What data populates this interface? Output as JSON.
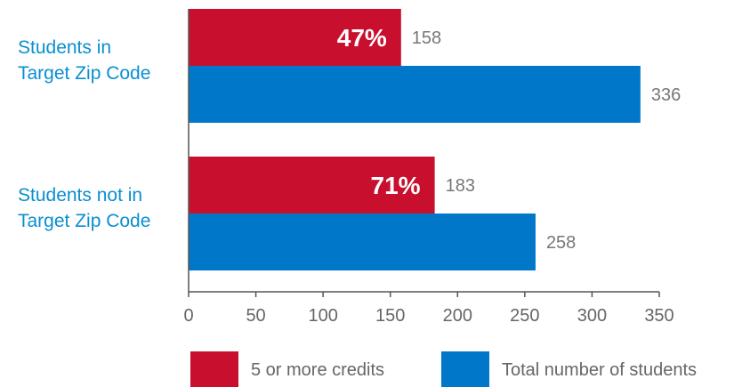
{
  "colors": {
    "credits": "#c8102e",
    "total": "#0077c8",
    "category_text": "#0a8fd0",
    "axis": "#555555"
  },
  "chart_data": {
    "type": "bar",
    "orientation": "horizontal",
    "categories": [
      "Students in Target Zip Code",
      "Students not in Target Zip Code"
    ],
    "category_lines": [
      [
        "Students in",
        "Target Zip Code"
      ],
      [
        "Students not in",
        "Target Zip Code"
      ]
    ],
    "series": [
      {
        "name": "5 or more credits",
        "values": [
          158,
          183
        ],
        "percent_labels": [
          "47%",
          "71%"
        ]
      },
      {
        "name": "Total number of students",
        "values": [
          336,
          258
        ]
      }
    ],
    "xlim": [
      0,
      350
    ],
    "xticks": [
      0,
      50,
      100,
      150,
      200,
      250,
      300,
      350
    ],
    "grid": false,
    "legend_position": "bottom"
  }
}
